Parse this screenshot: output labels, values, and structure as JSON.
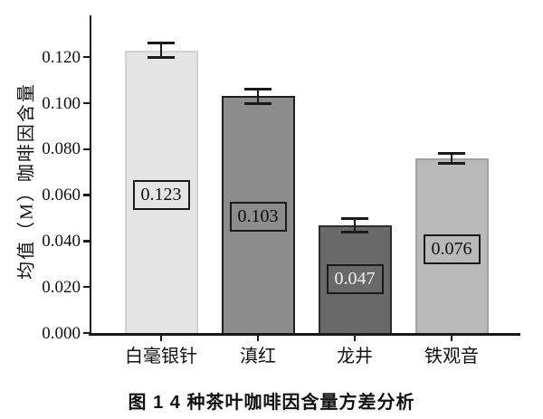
{
  "figure": {
    "caption": "图 1  4 种茶叶咖啡因含量方差分析"
  },
  "chart_data": {
    "type": "bar",
    "title": "",
    "caption": "图 1  4 种茶叶咖啡因含量方差分析",
    "categories": [
      "白毫银针",
      "滇红",
      "龙井",
      "铁观音"
    ],
    "values": [
      0.123,
      0.103,
      0.047,
      0.076
    ],
    "errors": [
      0.003,
      0.003,
      0.003,
      0.002
    ],
    "bar_value_labels": [
      "0.123",
      "0.103",
      "0.047",
      "0.076"
    ],
    "bar_fill_colors": [
      "#e4e4e4",
      "#8c8c8c",
      "#696969",
      "#b9b9b9"
    ],
    "bar_border_colors": [
      "#d2d2d2",
      "#1f1f1f",
      "#2d2d2d",
      "#a2a2a2"
    ],
    "bar_label_text_colors": [
      "#101010",
      "#0a0a0a",
      "#f2f2f2",
      "#101010"
    ],
    "bar_label_center_values": [
      0.06,
      0.0505,
      0.0235,
      0.0365
    ],
    "xlabel": "",
    "ylabel": "均值（M）咖啡因含量",
    "yticks": [
      0.0,
      0.02,
      0.04,
      0.06,
      0.08,
      0.1,
      0.12
    ],
    "ytick_labels": [
      "0.000",
      "0.020",
      "0.040",
      "0.060",
      "0.080",
      "0.100",
      "0.120"
    ],
    "ylim": [
      0,
      0.138
    ],
    "grid": false,
    "legend": false,
    "error_bar_color": "#1a1a1a",
    "axis_color": "#1a1a1a"
  }
}
